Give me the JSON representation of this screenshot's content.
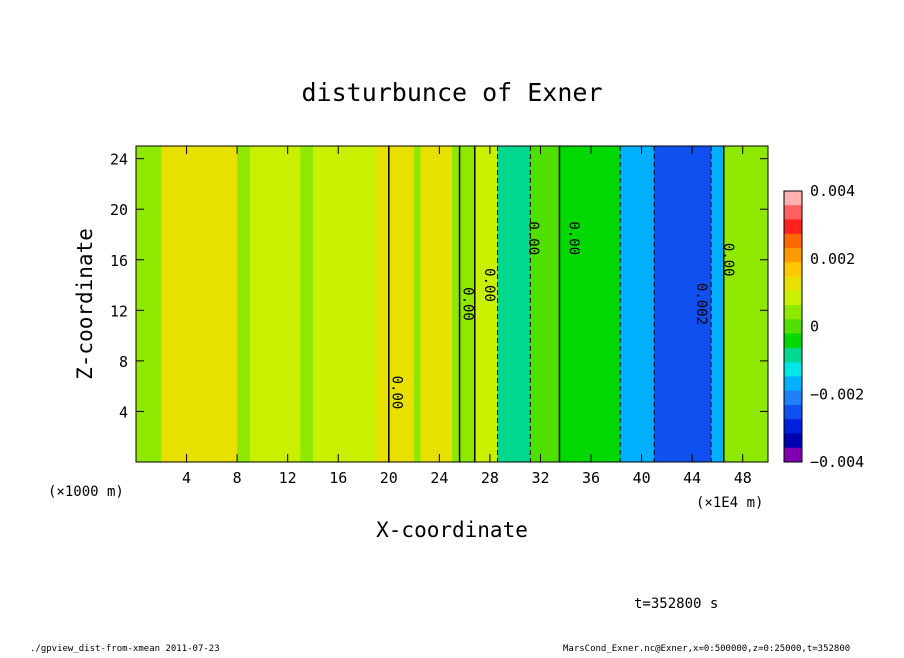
{
  "chart_data": {
    "type": "heatmap",
    "title": "disturbunce of Exner",
    "xlabel": "X-coordinate",
    "ylabel": "Z-coordinate",
    "x_unit_left": "(×1000 m)",
    "x_unit_right": "(×1E4 m)",
    "x_ticks": [
      "4",
      "8",
      "12",
      "16",
      "20",
      "24",
      "28",
      "32",
      "36",
      "40",
      "44",
      "48"
    ],
    "x_tick_values": [
      4,
      8,
      12,
      16,
      20,
      24,
      28,
      32,
      36,
      40,
      44,
      48
    ],
    "y_ticks": [
      "4",
      "8",
      "12",
      "16",
      "20",
      "24"
    ],
    "y_tick_values": [
      4,
      8,
      12,
      16,
      20,
      24
    ],
    "xlim": [
      0,
      50
    ],
    "ylim": [
      0,
      25
    ],
    "grid": false,
    "colorbar": {
      "labels": [
        "0.004",
        "0.002",
        "0",
        "−0.002",
        "−0.004"
      ],
      "values": [
        0.004,
        0.002,
        0,
        -0.002,
        -0.004
      ],
      "colors": [
        "#ffb0b0",
        "#ff6060",
        "#ff2020",
        "#ff6a00",
        "#ff9a00",
        "#ffc800",
        "#e8e000",
        "#c8f000",
        "#8ee800",
        "#50e000",
        "#00d800",
        "#00d890",
        "#00e6e6",
        "#00b0ff",
        "#2080f8",
        "#1050f0",
        "#0020e0",
        "#0000b0",
        "#8000b0"
      ]
    },
    "bands": [
      {
        "x": [
          0,
          50
        ],
        "value": 0.0006
      },
      {
        "x": [
          2,
          8
        ],
        "value": 0.0011
      },
      {
        "x": [
          9,
          13
        ],
        "value": 0.0009
      },
      {
        "x": [
          14,
          19
        ],
        "value": 0.001
      },
      {
        "x": [
          19,
          22
        ],
        "value": 0.0011
      },
      {
        "x": [
          22.5,
          25
        ],
        "value": 0.0014
      },
      {
        "x": [
          25.5,
          26.8
        ],
        "value": 0.0004
      },
      {
        "x": [
          26.8,
          28.6
        ],
        "value": 0.0009
      },
      {
        "x": [
          28.6,
          31.2
        ],
        "value": -0.001
      },
      {
        "x": [
          31.2,
          33.5
        ],
        "value": 0.0002
      },
      {
        "x": [
          33.5,
          38.3
        ],
        "value": -0.0004
      },
      {
        "x": [
          38.3,
          46.5
        ],
        "value": -0.0015
      },
      {
        "x": [
          41,
          45.5
        ],
        "value": -0.0025
      },
      {
        "x": [
          46.5,
          50
        ],
        "value": 0.0005
      }
    ],
    "contour_labels": [
      {
        "text": "0.00",
        "x": 20.3,
        "y": 5.5
      },
      {
        "text": "0.00",
        "x": 25.9,
        "y": 12.5
      },
      {
        "text": "0.00",
        "x": 27.6,
        "y": 14.0
      },
      {
        "text": "0.00",
        "x": 31.1,
        "y": 17.7
      },
      {
        "text": "0.00",
        "x": 34.3,
        "y": 17.7
      },
      {
        "text": "0.002",
        "x": 44.4,
        "y": 12.5
      },
      {
        "text": "0.00",
        "x": 46.5,
        "y": 16.0
      }
    ],
    "time_label": "t=352800 s"
  },
  "footer": {
    "left": "./gpview_dist-from-xmean  2011-07-23",
    "right": "MarsCond_Exner.nc@Exner,x=0:500000,z=0:25000,t=352800"
  }
}
